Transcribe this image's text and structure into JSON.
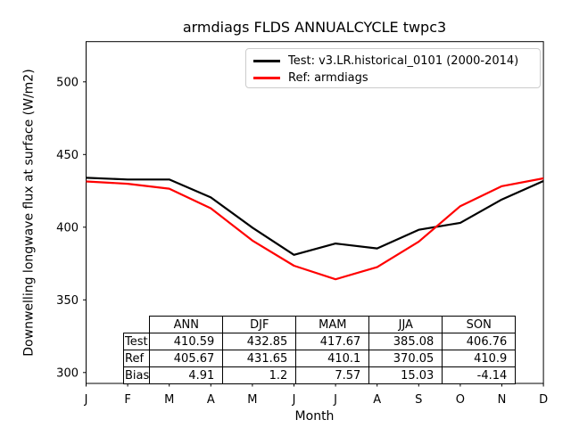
{
  "title": "armdiags FLDS ANNUALCYCLE twpc3",
  "axes": {
    "xlabel": "Month",
    "ylabel": "Downwelling longwave flux at surface (W/m2)",
    "x_tick_labels": [
      "J",
      "F",
      "M",
      "A",
      "M",
      "J",
      "J",
      "A",
      "S",
      "O",
      "N",
      "D"
    ],
    "y_tick_labels": [
      "300",
      "350",
      "400",
      "450",
      "500"
    ]
  },
  "legend": {
    "items": [
      {
        "label": "Test: v3.LR.historical_0101 (2000-2014)",
        "color": "#000000"
      },
      {
        "label": "Ref: armdiags",
        "color": "#ff0000"
      }
    ]
  },
  "stats_table": {
    "columns": [
      "ANN",
      "DJF",
      "MAM",
      "JJA",
      "SON"
    ],
    "rows": [
      {
        "label": "Test",
        "values": [
          "410.59",
          "432.85",
          "417.67",
          "385.08",
          "406.76"
        ]
      },
      {
        "label": "Ref",
        "values": [
          "405.67",
          "431.65",
          "410.1",
          "370.05",
          "410.9"
        ]
      },
      {
        "label": "Bias",
        "values": [
          "4.91",
          "1.2",
          "7.57",
          "15.03",
          "-4.14"
        ]
      }
    ]
  },
  "chart_data": {
    "type": "line",
    "title": "armdiags FLDS ANNUALCYCLE twpc3",
    "xlabel": "Month",
    "ylabel": "Downwelling longwave flux at surface (W/m2)",
    "x": [
      "Jan",
      "Feb",
      "Mar",
      "Apr",
      "May",
      "Jun",
      "Jul",
      "Aug",
      "Sep",
      "Oct",
      "Nov",
      "Dec"
    ],
    "x_tick_labels": [
      "J",
      "F",
      "M",
      "A",
      "M",
      "J",
      "J",
      "A",
      "S",
      "O",
      "N",
      "D"
    ],
    "yticks": [
      300,
      350,
      400,
      450,
      500
    ],
    "ylim": [
      292,
      528
    ],
    "grid": false,
    "legend_position": "upper right",
    "series": [
      {
        "name": "Test: v3.LR.historical_0101 (2000-2014)",
        "color": "#000000",
        "values": [
          434.0,
          432.8,
          432.8,
          420.5,
          399.7,
          381.0,
          388.8,
          385.4,
          398.2,
          403.0,
          419.1,
          431.8
        ]
      },
      {
        "name": "Ref: armdiags",
        "color": "#ff0000",
        "values": [
          431.5,
          429.9,
          426.5,
          413.0,
          390.8,
          373.5,
          364.2,
          372.5,
          390.0,
          414.5,
          428.2,
          433.6
        ]
      }
    ]
  }
}
